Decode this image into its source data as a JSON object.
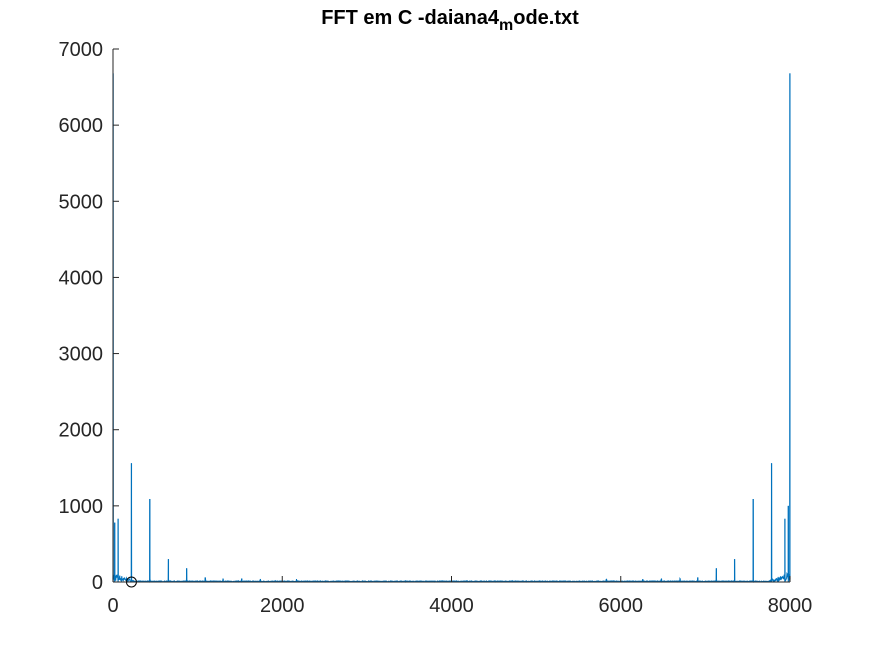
{
  "chart_data": {
    "type": "line",
    "title": "FFT em C -daiana4",
    "title_subscript": "m",
    "title_suffix": "ode.txt",
    "xlabel": "",
    "ylabel": "",
    "xlim": [
      0,
      8000
    ],
    "ylim": [
      0,
      7000
    ],
    "x_ticks": [
      "0",
      "2000",
      "4000",
      "6000",
      "8000"
    ],
    "y_ticks": [
      "0",
      "1000",
      "2000",
      "3000",
      "4000",
      "5000",
      "6000",
      "7000"
    ],
    "grid": false,
    "line_color": "#0072BD",
    "marker_color": "#000000",
    "series": [
      {
        "peaks": [
          {
            "x": 1,
            "y": 6680
          },
          {
            "x": 20,
            "y": 780
          },
          {
            "x": 60,
            "y": 830
          },
          {
            "x": 218,
            "y": 1560
          },
          {
            "x": 435,
            "y": 1090
          },
          {
            "x": 655,
            "y": 300
          },
          {
            "x": 870,
            "y": 180
          },
          {
            "x": 1090,
            "y": 60
          },
          {
            "x": 1300,
            "y": 45
          },
          {
            "x": 1520,
            "y": 40
          },
          {
            "x": 1740,
            "y": 30
          },
          {
            "x": 2170,
            "y": 25
          },
          {
            "x": 5830,
            "y": 25
          },
          {
            "x": 6260,
            "y": 30
          },
          {
            "x": 6480,
            "y": 40
          },
          {
            "x": 6700,
            "y": 45
          },
          {
            "x": 6910,
            "y": 60
          },
          {
            "x": 7130,
            "y": 180
          },
          {
            "x": 7345,
            "y": 300
          },
          {
            "x": 7565,
            "y": 1090
          },
          {
            "x": 7782,
            "y": 1560
          },
          {
            "x": 7940,
            "y": 830
          },
          {
            "x": 7980,
            "y": 1000
          },
          {
            "x": 7999,
            "y": 6680
          }
        ]
      }
    ],
    "marker": {
      "x": 218,
      "y": 0
    }
  }
}
